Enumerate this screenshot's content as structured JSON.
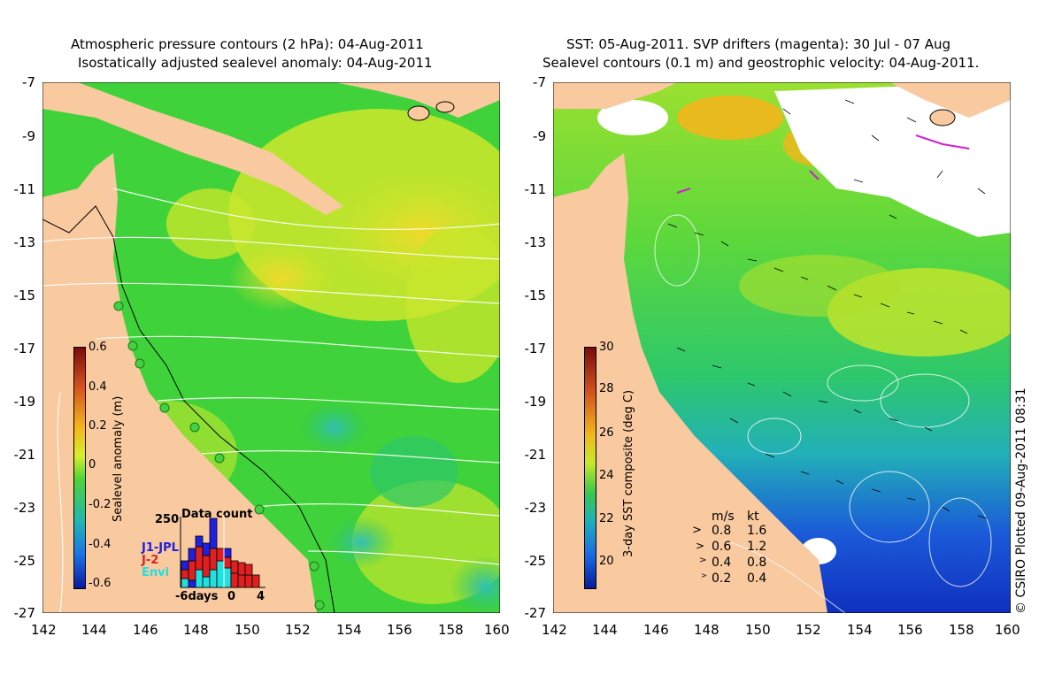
{
  "left_panel": {
    "title_line1": "Atmospheric pressure contours (2 hPa): 04-Aug-2011",
    "title_line2": "Isostatically adjusted sealevel anomaly: 04-Aug-2011",
    "colorbar": {
      "label": "Sealevel anomaly (m)",
      "ticks": [
        "0.6",
        "0.4",
        "0.2",
        "0",
        "-0.2",
        "-0.4",
        "-0.6"
      ],
      "colors": [
        "#7a0c0c",
        "#d2501e",
        "#f2b61c",
        "#d8ef2a",
        "#4cd23a",
        "#22b7b0",
        "#1a73e6",
        "#0a1a9a"
      ]
    },
    "inset": {
      "title": "Data count",
      "ymax_label": "250",
      "legend": [
        {
          "name": "J1-JPL",
          "color": "#2020e0"
        },
        {
          "name": "J-2",
          "color": "#e02020"
        },
        {
          "name": "Envi",
          "color": "#20e0e0"
        }
      ],
      "x_labels": [
        "-6days",
        "0",
        "4"
      ]
    }
  },
  "right_panel": {
    "title_line1": "SST: 05-Aug-2011. SVP drifters (magenta): 30 Jul - 07 Aug",
    "title_line2": "Sealevel contours (0.1 m) and geostrophic velocity: 04-Aug-2011.",
    "colorbar": {
      "label": "3-day SST composite (deg C)",
      "ticks": [
        "30",
        "28",
        "26",
        "24",
        "22",
        "20"
      ],
      "colors": [
        "#7a0c0c",
        "#d2501e",
        "#f2b61c",
        "#c8e82a",
        "#3cc84a",
        "#1fb0b8",
        "#1a6ae6",
        "#0a1a9a"
      ]
    },
    "velocity_legend": {
      "header_ms": "m/s",
      "header_kt": "kt",
      "rows": [
        {
          "ms": "0.8",
          "kt": "1.6"
        },
        {
          "ms": "0.6",
          "kt": "1.2"
        },
        {
          "ms": "0.4",
          "kt": "0.8"
        },
        {
          "ms": "0.2",
          "kt": "0.4"
        }
      ]
    },
    "credit": "© CSIRO Plotted 09-Aug-2011 08:31"
  },
  "axes": {
    "lat_labels": [
      "-7",
      "-9",
      "-11",
      "-13",
      "-15",
      "-17",
      "-19",
      "-21",
      "-23",
      "-25",
      "-27"
    ],
    "lon_labels": [
      "142",
      "144",
      "146",
      "148",
      "150",
      "152",
      "154",
      "156",
      "158",
      "160"
    ]
  },
  "colors": {
    "land": "#f9c9a0",
    "sea_green": "#3fd23a",
    "sea_yellow": "#d6ec2c",
    "sst_blue": "#1a5ad8"
  }
}
